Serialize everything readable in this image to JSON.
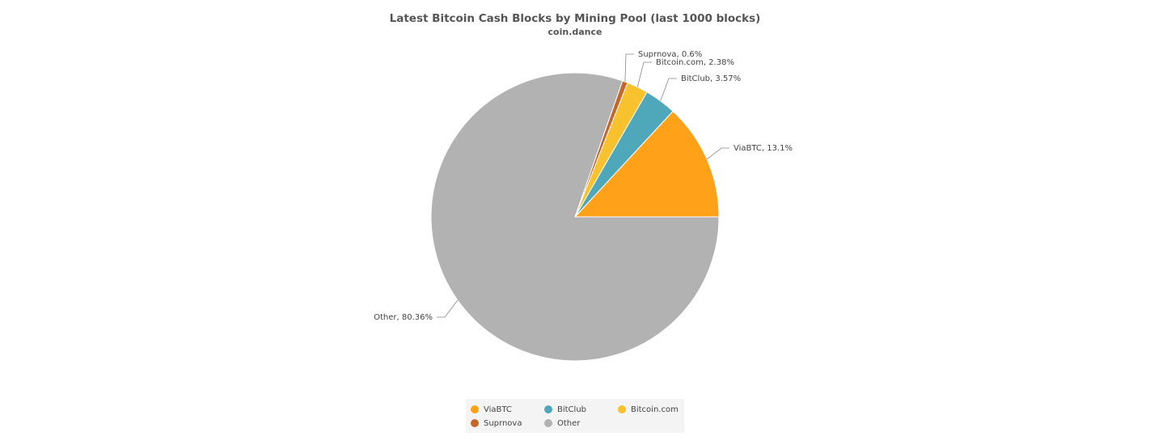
{
  "chart_data": {
    "type": "pie",
    "title": "Latest Bitcoin Cash Blocks by Mining Pool (last 1000 blocks)",
    "subtitle": "coin.dance",
    "categories": [
      "ViaBTC",
      "BitClub",
      "Bitcoin.com",
      "Suprnova",
      "Other"
    ],
    "values": [
      13.1,
      3.57,
      2.38,
      0.6,
      80.36
    ],
    "value_labels": [
      "ViaBTC, 13.1%",
      "BitClub, 3.57%",
      "Bitcoin.com, 2.38%",
      "Suprnova, 0.6%",
      "Other, 80.36%"
    ],
    "colors": [
      "#ffa21a",
      "#4fa8b9",
      "#f8c22e",
      "#c4672b",
      "#b2b2b2"
    ]
  }
}
